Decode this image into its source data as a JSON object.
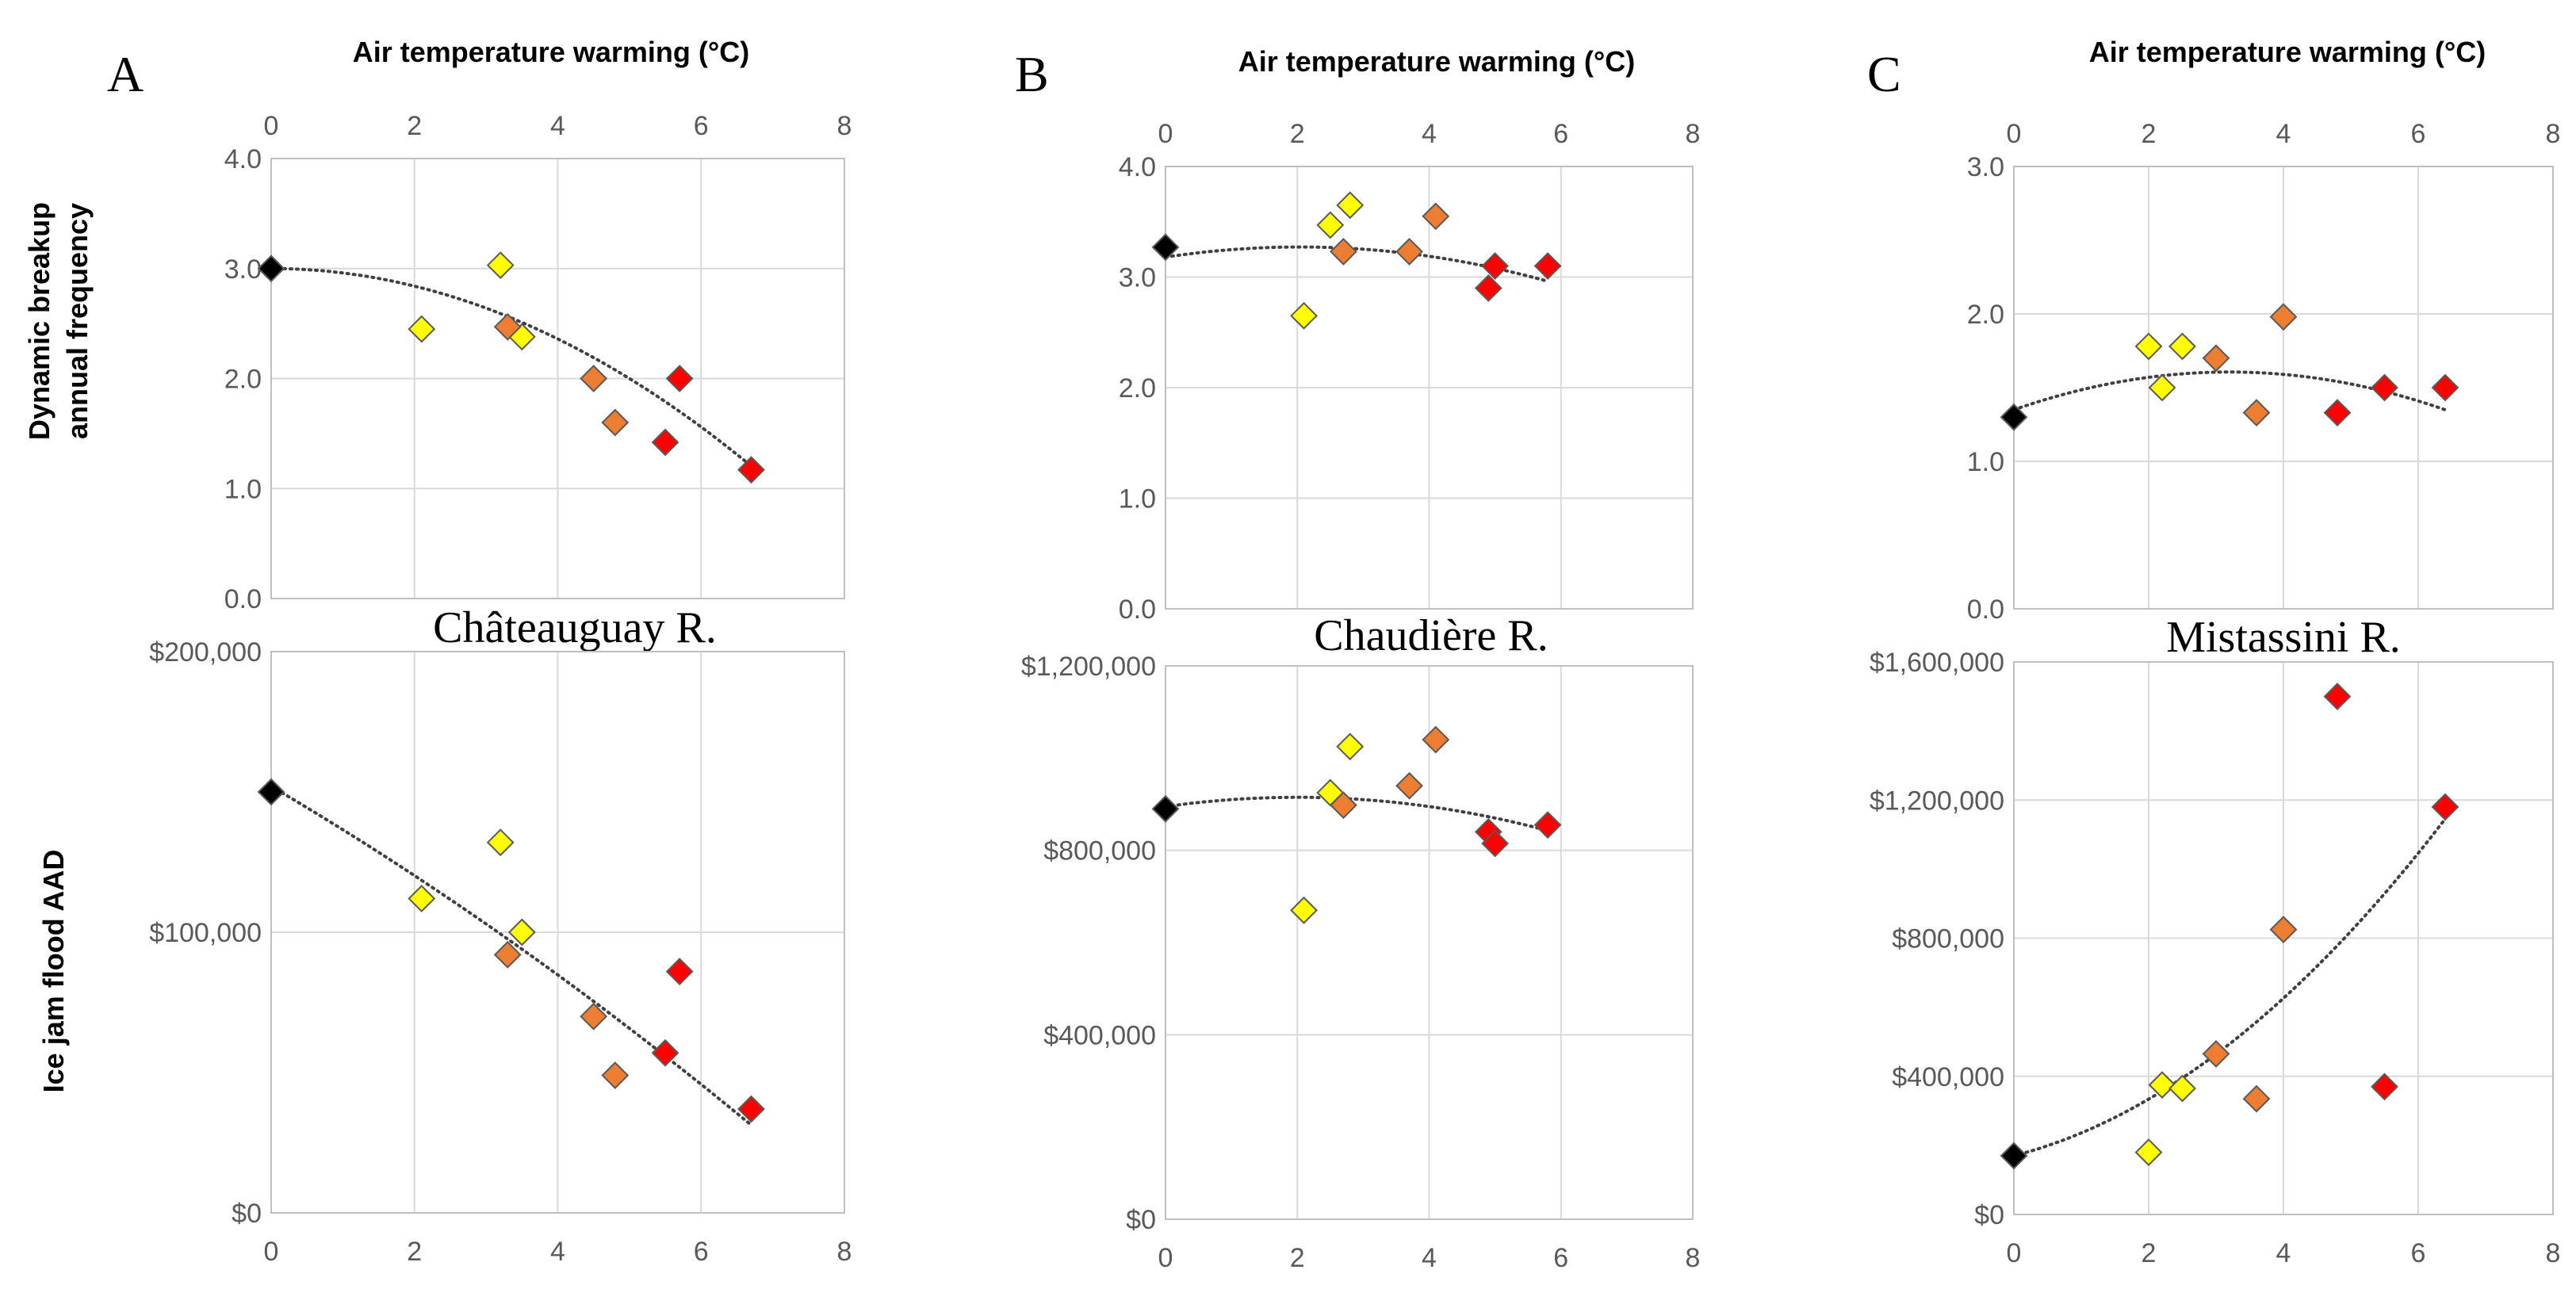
{
  "figure": {
    "top_axis_label": "Air temperature warming (°C)",
    "ylabel_top_line1": "Dynamic breakup",
    "ylabel_top_line2": "annual frequency",
    "ylabel_bottom": "Ice jam flood AAD"
  },
  "colors": {
    "black": "#000000",
    "yellow": "#ffff00",
    "orange": "#ed7d31",
    "red": "#ff0000"
  },
  "chart_data": [
    {
      "type": "scatter",
      "panel": "A",
      "river_label": "",
      "x_axis": "top",
      "xlim": [
        0,
        8
      ],
      "xticks": [
        "0",
        "2",
        "4",
        "6",
        "8"
      ],
      "ylim": [
        0,
        4
      ],
      "yticks": [
        "0.0",
        "1.0",
        "2.0",
        "3.0",
        "4.0"
      ],
      "points": [
        {
          "x": 0,
          "y": 3.0,
          "color": "black"
        },
        {
          "x": 2.1,
          "y": 2.45,
          "color": "yellow"
        },
        {
          "x": 3.2,
          "y": 3.03,
          "color": "yellow"
        },
        {
          "x": 3.5,
          "y": 2.38,
          "color": "yellow"
        },
        {
          "x": 3.3,
          "y": 2.47,
          "color": "orange"
        },
        {
          "x": 4.5,
          "y": 2.0,
          "color": "orange"
        },
        {
          "x": 4.8,
          "y": 1.6,
          "color": "orange"
        },
        {
          "x": 5.5,
          "y": 1.42,
          "color": "red"
        },
        {
          "x": 5.7,
          "y": 2.0,
          "color": "red"
        },
        {
          "x": 6.7,
          "y": 1.17,
          "color": "red"
        }
      ],
      "trend": [
        3.0,
        0.0,
        -0.04
      ]
    },
    {
      "type": "scatter",
      "panel": "",
      "river_label": "Châteauguay R.",
      "x_axis": "bottom",
      "xlim": [
        0,
        8
      ],
      "xticks": [
        "0",
        "2",
        "4",
        "6",
        "8"
      ],
      "ylim": [
        0,
        200000
      ],
      "yticks": [
        "$0",
        "$100,000",
        "$200,000"
      ],
      "points": [
        {
          "x": 0,
          "y": 150000,
          "color": "black"
        },
        {
          "x": 2.1,
          "y": 112000,
          "color": "yellow"
        },
        {
          "x": 3.2,
          "y": 132000,
          "color": "yellow"
        },
        {
          "x": 3.5,
          "y": 100000,
          "color": "yellow"
        },
        {
          "x": 3.3,
          "y": 92000,
          "color": "orange"
        },
        {
          "x": 4.5,
          "y": 70000,
          "color": "orange"
        },
        {
          "x": 4.8,
          "y": 49000,
          "color": "orange"
        },
        {
          "x": 5.5,
          "y": 57000,
          "color": "red"
        },
        {
          "x": 5.7,
          "y": 86000,
          "color": "red"
        },
        {
          "x": 6.7,
          "y": 37000,
          "color": "red"
        }
      ],
      "trend": [
        152000,
        -15000,
        -450
      ]
    },
    {
      "type": "scatter",
      "panel": "B",
      "river_label": "",
      "x_axis": "top",
      "xlim": [
        0,
        8
      ],
      "xticks": [
        "0",
        "2",
        "4",
        "6",
        "8"
      ],
      "ylim": [
        0,
        4
      ],
      "yticks": [
        "0.0",
        "1.0",
        "2.0",
        "3.0",
        "4.0"
      ],
      "points": [
        {
          "x": 0,
          "y": 3.27,
          "color": "black"
        },
        {
          "x": 2.1,
          "y": 2.65,
          "color": "yellow"
        },
        {
          "x": 2.5,
          "y": 3.47,
          "color": "yellow"
        },
        {
          "x": 2.8,
          "y": 3.65,
          "color": "yellow"
        },
        {
          "x": 2.7,
          "y": 3.23,
          "color": "orange"
        },
        {
          "x": 3.7,
          "y": 3.23,
          "color": "orange"
        },
        {
          "x": 4.1,
          "y": 3.55,
          "color": "orange"
        },
        {
          "x": 4.9,
          "y": 2.9,
          "color": "red"
        },
        {
          "x": 5.0,
          "y": 3.1,
          "color": "red"
        },
        {
          "x": 5.8,
          "y": 3.1,
          "color": "red"
        }
      ],
      "trend": [
        3.18,
        0.09,
        -0.022
      ]
    },
    {
      "type": "scatter",
      "panel": "",
      "river_label": "Chaudière R.",
      "x_axis": "bottom",
      "xlim": [
        0,
        8
      ],
      "xticks": [
        "0",
        "2",
        "4",
        "6",
        "8"
      ],
      "ylim": [
        0,
        1200000
      ],
      "yticks": [
        "$0",
        "$400,000",
        "$800,000",
        "$1,200,000"
      ],
      "points": [
        {
          "x": 0,
          "y": 890000,
          "color": "black"
        },
        {
          "x": 2.1,
          "y": 670000,
          "color": "yellow"
        },
        {
          "x": 2.5,
          "y": 925000,
          "color": "yellow"
        },
        {
          "x": 2.8,
          "y": 1025000,
          "color": "yellow"
        },
        {
          "x": 2.7,
          "y": 898000,
          "color": "orange"
        },
        {
          "x": 3.7,
          "y": 940000,
          "color": "orange"
        },
        {
          "x": 4.1,
          "y": 1040000,
          "color": "orange"
        },
        {
          "x": 4.9,
          "y": 840000,
          "color": "red"
        },
        {
          "x": 5.0,
          "y": 815000,
          "color": "red"
        },
        {
          "x": 5.8,
          "y": 855000,
          "color": "red"
        }
      ],
      "trend": [
        895000,
        20000,
        -5000
      ]
    },
    {
      "type": "scatter",
      "panel": "C",
      "river_label": "",
      "x_axis": "top",
      "xlim": [
        0,
        8
      ],
      "xticks": [
        "0",
        "2",
        "4",
        "6",
        "8"
      ],
      "ylim": [
        0,
        3
      ],
      "yticks": [
        "0.0",
        "1.0",
        "2.0",
        "3.0"
      ],
      "points": [
        {
          "x": 0,
          "y": 1.3,
          "color": "black"
        },
        {
          "x": 2.0,
          "y": 1.78,
          "color": "yellow"
        },
        {
          "x": 2.2,
          "y": 1.5,
          "color": "yellow"
        },
        {
          "x": 2.5,
          "y": 1.78,
          "color": "yellow"
        },
        {
          "x": 3.0,
          "y": 1.7,
          "color": "orange"
        },
        {
          "x": 3.6,
          "y": 1.33,
          "color": "orange"
        },
        {
          "x": 4.0,
          "y": 1.98,
          "color": "orange"
        },
        {
          "x": 4.8,
          "y": 1.33,
          "color": "red"
        },
        {
          "x": 5.5,
          "y": 1.5,
          "color": "red"
        },
        {
          "x": 6.4,
          "y": 1.5,
          "color": "red"
        }
      ],
      "trend": [
        1.35,
        0.16,
        -0.025
      ]
    },
    {
      "type": "scatter",
      "panel": "",
      "river_label": "Mistassini R.",
      "x_axis": "bottom",
      "xlim": [
        0,
        8
      ],
      "xticks": [
        "0",
        "2",
        "4",
        "6",
        "8"
      ],
      "ylim": [
        0,
        1600000
      ],
      "yticks": [
        "$0",
        "$400,000",
        "$800,000",
        "$1,200,000",
        "$1,600,000"
      ],
      "points": [
        {
          "x": 0,
          "y": 170000,
          "color": "black"
        },
        {
          "x": 2.0,
          "y": 180000,
          "color": "yellow"
        },
        {
          "x": 2.2,
          "y": 375000,
          "color": "yellow"
        },
        {
          "x": 2.5,
          "y": 365000,
          "color": "yellow"
        },
        {
          "x": 3.0,
          "y": 465000,
          "color": "orange"
        },
        {
          "x": 3.6,
          "y": 335000,
          "color": "orange"
        },
        {
          "x": 4.0,
          "y": 825000,
          "color": "orange"
        },
        {
          "x": 4.8,
          "y": 1500000,
          "color": "red"
        },
        {
          "x": 5.5,
          "y": 370000,
          "color": "red"
        },
        {
          "x": 6.4,
          "y": 1180000,
          "color": "red"
        }
      ],
      "trend": [
        170000,
        50000,
        16000
      ]
    }
  ]
}
